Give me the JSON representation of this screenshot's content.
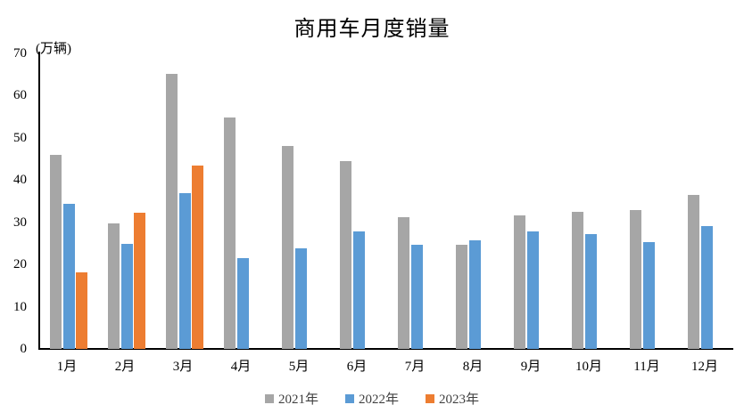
{
  "chart_data": {
    "type": "bar",
    "title": "商用车月度销量",
    "ylabel": "(万辆)",
    "xlabel": "",
    "categories": [
      "1月",
      "2月",
      "3月",
      "4月",
      "5月",
      "6月",
      "7月",
      "8月",
      "9月",
      "10月",
      "11月",
      "12月"
    ],
    "series": [
      {
        "name": "2021年",
        "color": "#A6A6A6",
        "values": [
          45.9,
          29.8,
          65.2,
          54.8,
          48.1,
          44.5,
          31.2,
          24.7,
          31.6,
          32.5,
          32.9,
          36.4
        ]
      },
      {
        "name": "2022年",
        "color": "#5B9BD5",
        "values": [
          34.3,
          24.9,
          37.0,
          21.5,
          23.8,
          27.9,
          24.6,
          25.7,
          27.8,
          27.1,
          25.3,
          29.0
        ]
      },
      {
        "name": "2023年",
        "color": "#ED7D31",
        "values": [
          18.1,
          32.3,
          43.4,
          null,
          null,
          null,
          null,
          null,
          null,
          null,
          null,
          null
        ]
      }
    ],
    "ylim": [
      0,
      70
    ],
    "yticks": [
      0,
      10,
      20,
      30,
      40,
      50,
      60,
      70
    ],
    "grid": false,
    "legend_position": "bottom",
    "axis_color": "#000000",
    "text_color": "#000000"
  }
}
